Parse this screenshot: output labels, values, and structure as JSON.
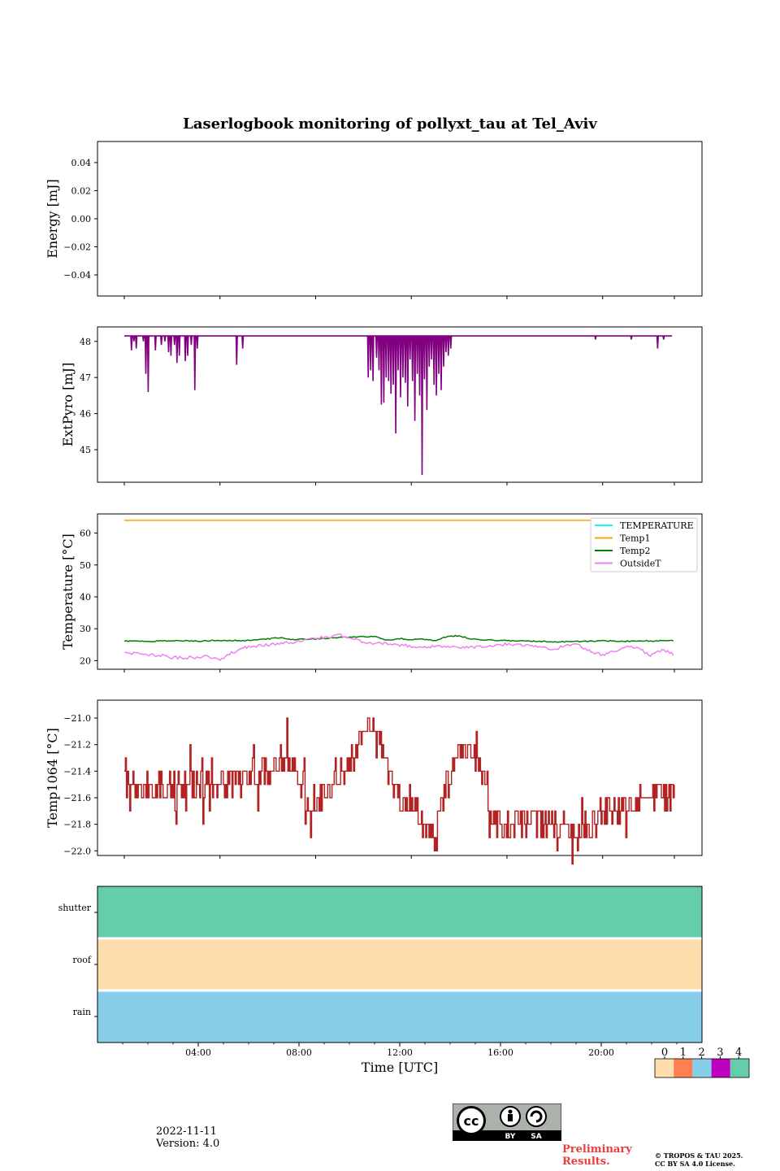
{
  "title": "Laserlogbook monitoring of pollyxt_tau at Tel_Aviv",
  "footer": {
    "date": "2022-11-11",
    "version": "Version: 4.0",
    "preliminary_line1": "Preliminary",
    "preliminary_line2": "Results.",
    "copyright_line1": "© TROPOS & TAU 2025.",
    "copyright_line2": "CC BY SA 4.0 License.",
    "cc_logo_text": [
      "cc",
      "BY",
      "SA"
    ]
  },
  "colorbar": {
    "labels": [
      "0",
      "1",
      "2",
      "3",
      "4"
    ],
    "colors": [
      "#fddeac",
      "#ff7f50",
      "#87ceeb",
      "#c000c0",
      "#66cdaa"
    ]
  },
  "chart_data": [
    {
      "id": "energy",
      "type": "line",
      "ylabel": "Energy [mJ]",
      "ylim": [
        -0.055,
        0.055
      ],
      "yticks": [
        0.04,
        0.02,
        0.0,
        -0.02,
        -0.04
      ],
      "ytick_labels": [
        "0.04",
        "0.02",
        "0.00",
        "−0.02",
        "−0.04"
      ],
      "series": []
    },
    {
      "id": "extpyro",
      "type": "line",
      "ylabel": "ExtPyro [mJ]",
      "ylim": [
        44.1,
        48.4
      ],
      "yticks": [
        48,
        47,
        46,
        45
      ],
      "ytick_labels": [
        "48",
        "47",
        "46",
        "45"
      ],
      "baseline": 48.15,
      "color": "#800080",
      "dips": [
        [
          0.3,
          47.75
        ],
        [
          0.4,
          48.0
        ],
        [
          0.5,
          47.8
        ],
        [
          0.8,
          48.0
        ],
        [
          0.9,
          47.1
        ],
        [
          1.0,
          46.6
        ],
        [
          1.3,
          47.75
        ],
        [
          1.55,
          47.9
        ],
        [
          1.7,
          48.0
        ],
        [
          1.85,
          47.7
        ],
        [
          1.95,
          47.6
        ],
        [
          2.1,
          47.9
        ],
        [
          2.2,
          47.4
        ],
        [
          2.3,
          47.6
        ],
        [
          2.55,
          47.45
        ],
        [
          2.65,
          47.6
        ],
        [
          2.8,
          47.9
        ],
        [
          2.95,
          46.65
        ],
        [
          3.05,
          47.8
        ],
        [
          4.7,
          47.35
        ],
        [
          4.95,
          47.8
        ],
        [
          10.2,
          47.0
        ],
        [
          10.3,
          47.2
        ],
        [
          10.4,
          46.9
        ],
        [
          10.55,
          47.55
        ],
        [
          10.65,
          47.2
        ],
        [
          10.75,
          46.25
        ],
        [
          10.85,
          46.3
        ],
        [
          10.95,
          47.0
        ],
        [
          11.05,
          46.9
        ],
        [
          11.15,
          46.55
        ],
        [
          11.25,
          46.8
        ],
        [
          11.35,
          45.45
        ],
        [
          11.45,
          47.2
        ],
        [
          11.55,
          46.45
        ],
        [
          11.65,
          47.0
        ],
        [
          11.75,
          46.85
        ],
        [
          11.85,
          46.2
        ],
        [
          11.95,
          47.5
        ],
        [
          12.05,
          46.9
        ],
        [
          12.15,
          45.8
        ],
        [
          12.25,
          47.1
        ],
        [
          12.35,
          46.5
        ],
        [
          12.45,
          44.3
        ],
        [
          12.55,
          46.95
        ],
        [
          12.65,
          46.1
        ],
        [
          12.75,
          47.3
        ],
        [
          12.85,
          47.5
        ],
        [
          12.95,
          46.8
        ],
        [
          13.05,
          46.5
        ],
        [
          13.15,
          47.1
        ],
        [
          13.25,
          46.65
        ],
        [
          13.35,
          47.3
        ],
        [
          13.45,
          47.7
        ],
        [
          13.55,
          47.6
        ],
        [
          13.65,
          47.8
        ],
        [
          19.7,
          48.05
        ],
        [
          21.2,
          48.05
        ],
        [
          22.3,
          47.8
        ],
        [
          22.55,
          48.05
        ]
      ],
      "dip_range": [
        0.0,
        22.9
      ]
    },
    {
      "id": "temperature",
      "type": "line",
      "ylabel": "Temperature [°C]",
      "ylim": [
        17.3,
        66.0
      ],
      "yticks": [
        60,
        50,
        40,
        30,
        20
      ],
      "ytick_labels": [
        "60",
        "50",
        "40",
        "30",
        "20"
      ],
      "legend_position": "upper right",
      "series": [
        {
          "name": "TEMPERATURE",
          "color": "#00ffff",
          "values": []
        },
        {
          "name": "Temp1",
          "color": "#ffa500",
          "const": 64.0
        },
        {
          "name": "Temp2",
          "color": "#008000",
          "points": [
            [
              0,
              26.2
            ],
            [
              1,
              26.0
            ],
            [
              2,
              26.3
            ],
            [
              3,
              26.1
            ],
            [
              4,
              26.4
            ],
            [
              5,
              26.2
            ],
            [
              6,
              26.8
            ],
            [
              6.5,
              27.2
            ],
            [
              7,
              26.6
            ],
            [
              8,
              26.8
            ],
            [
              9,
              27.3
            ],
            [
              10,
              27.5
            ],
            [
              10.5,
              27.6
            ],
            [
              11,
              26.4
            ],
            [
              11.5,
              27.0
            ],
            [
              12,
              26.5
            ],
            [
              12.5,
              26.8
            ],
            [
              13,
              26.2
            ],
            [
              13.5,
              27.6
            ],
            [
              14,
              27.8
            ],
            [
              14.5,
              26.8
            ],
            [
              15,
              26.5
            ],
            [
              16,
              26.3
            ],
            [
              17,
              26.1
            ],
            [
              18,
              25.9
            ],
            [
              19,
              26.0
            ],
            [
              20,
              26.2
            ],
            [
              21,
              26.1
            ],
            [
              22,
              26.2
            ],
            [
              23,
              26.3
            ]
          ]
        },
        {
          "name": "OutsideT",
          "color": "#ee82ee",
          "points": [
            [
              0,
              22.6
            ],
            [
              0.5,
              22.2
            ],
            [
              1,
              21.9
            ],
            [
              1.5,
              21.7
            ],
            [
              2,
              21.0
            ],
            [
              2.5,
              20.9
            ],
            [
              3,
              21.1
            ],
            [
              3.5,
              21.4
            ],
            [
              4,
              20.3
            ],
            [
              4.5,
              22.5
            ],
            [
              5,
              24.0
            ],
            [
              5.5,
              24.6
            ],
            [
              6,
              25.0
            ],
            [
              6.5,
              25.4
            ],
            [
              7,
              25.6
            ],
            [
              7.5,
              26.5
            ],
            [
              8,
              27.0
            ],
            [
              8.5,
              27.5
            ],
            [
              9,
              28.0
            ],
            [
              9.5,
              27.0
            ],
            [
              10,
              25.8
            ],
            [
              10.5,
              25.5
            ],
            [
              11,
              25.3
            ],
            [
              11.5,
              25.0
            ],
            [
              12,
              24.5
            ],
            [
              12.5,
              24.2
            ],
            [
              13,
              24.6
            ],
            [
              13.5,
              24.4
            ],
            [
              14,
              24.0
            ],
            [
              14.5,
              24.2
            ],
            [
              15,
              24.3
            ],
            [
              15.5,
              24.5
            ],
            [
              16,
              25.3
            ],
            [
              16.5,
              25.1
            ],
            [
              17,
              24.6
            ],
            [
              17.5,
              24.2
            ],
            [
              18,
              23.6
            ],
            [
              18.5,
              24.9
            ],
            [
              19,
              25.0
            ],
            [
              19.5,
              22.8
            ],
            [
              20,
              21.8
            ],
            [
              20.5,
              22.9
            ],
            [
              21,
              24.7
            ],
            [
              21.5,
              23.9
            ],
            [
              22,
              21.4
            ],
            [
              22.5,
              23.6
            ],
            [
              23,
              21.9
            ]
          ]
        }
      ]
    },
    {
      "id": "temp1064",
      "type": "line",
      "ylabel": "Temp1064 [°C]",
      "ylim": [
        -22.035,
        -20.865
      ],
      "yticks": [
        -21.0,
        -21.2,
        -21.4,
        -21.6,
        -21.8,
        -22.0
      ],
      "ytick_labels": [
        "−21.0",
        "−21.2",
        "−21.4",
        "−21.6",
        "−21.8",
        "−22.0"
      ],
      "color": "#b22222",
      "trend": [
        [
          0,
          -21.5
        ],
        [
          1,
          -21.55
        ],
        [
          2,
          -21.5
        ],
        [
          3,
          -21.5
        ],
        [
          4,
          -21.5
        ],
        [
          5,
          -21.45
        ],
        [
          6,
          -21.4
        ],
        [
          6.5,
          -21.3
        ],
        [
          7,
          -21.35
        ],
        [
          7.5,
          -21.55
        ],
        [
          8,
          -21.65
        ],
        [
          9,
          -21.45
        ],
        [
          9.5,
          -21.3
        ],
        [
          10,
          -21.1
        ],
        [
          10.5,
          -21.0
        ],
        [
          11,
          -21.4
        ],
        [
          11.5,
          -21.6
        ],
        [
          12,
          -21.65
        ],
        [
          12.5,
          -21.8
        ],
        [
          13,
          -21.85
        ],
        [
          13.5,
          -21.5
        ],
        [
          14,
          -21.25
        ],
        [
          14.5,
          -21.2
        ],
        [
          15,
          -21.45
        ],
        [
          15.5,
          -21.75
        ],
        [
          16,
          -21.8
        ],
        [
          17,
          -21.75
        ],
        [
          18,
          -21.8
        ],
        [
          19,
          -21.85
        ],
        [
          19.5,
          -21.8
        ],
        [
          20,
          -21.7
        ],
        [
          21,
          -21.65
        ],
        [
          22,
          -21.6
        ],
        [
          23,
          -21.55
        ]
      ]
    },
    {
      "id": "status",
      "type": "heatmap",
      "categories": [
        "shutter",
        "roof",
        "rain"
      ],
      "values": [
        4,
        0,
        2
      ],
      "xlabel": "Time [UTC]",
      "xlim": [
        0,
        24
      ],
      "xticks": [
        "04:00",
        "08:00",
        "12:00",
        "16:00",
        "20:00"
      ],
      "xtick_hours": [
        4,
        8,
        12,
        16,
        20
      ]
    }
  ]
}
